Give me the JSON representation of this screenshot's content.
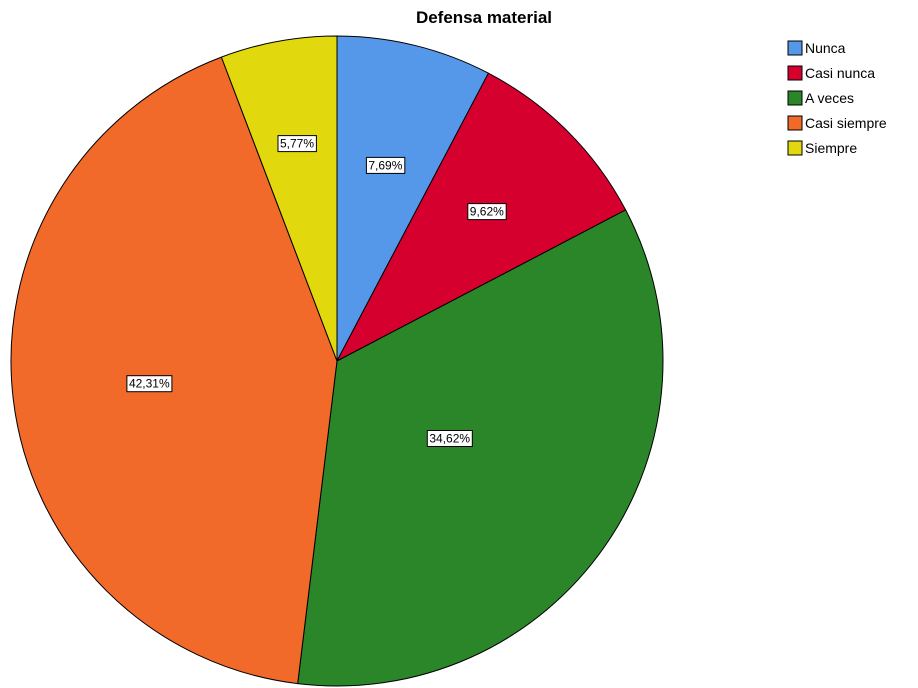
{
  "chart_data": {
    "type": "pie",
    "title": "Defensa material",
    "categories": [
      "Nunca",
      "Casi nunca",
      "A veces",
      "Casi siempre",
      "Siempre"
    ],
    "values": [
      7.69,
      9.62,
      34.62,
      42.31,
      5.77
    ],
    "value_labels": [
      "7,69%",
      "9,62%",
      "34,62%",
      "42,31%",
      "5,77%"
    ],
    "colors": [
      "#5597e8",
      "#d6002f",
      "#2a8628",
      "#f26a2a",
      "#e2d80e"
    ],
    "legend": {
      "placement": "top-right",
      "entries": [
        "Nunca",
        "Casi nunca",
        "A veces",
        "Casi siempre",
        "Siempre"
      ]
    },
    "start": "12 o'clock",
    "direction": "clockwise"
  }
}
